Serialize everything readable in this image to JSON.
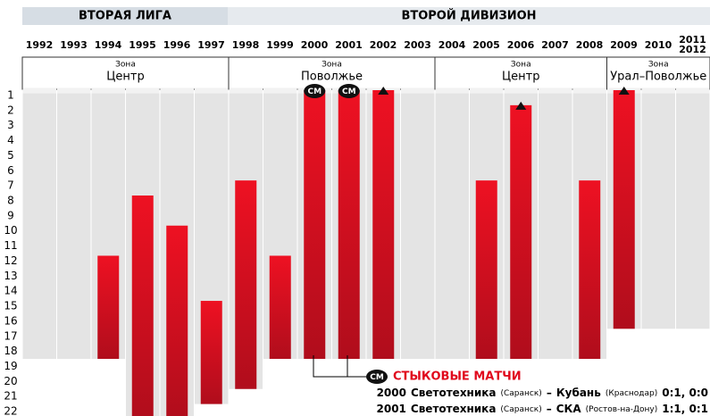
{
  "chart_data": {
    "type": "bar",
    "leagues": [
      "ВТОРАЯ ЛИГА",
      "ВТОРОЙ ДИВИЗИОН"
    ],
    "zones": [
      {
        "label": "Зона",
        "name": "Центр"
      },
      {
        "label": "Зона",
        "name": "Поволжье"
      },
      {
        "label": "Зона",
        "name": "Центр"
      },
      {
        "label": "Зона",
        "name": "Урал–Поволжье"
      }
    ],
    "categories": [
      "1992",
      "1993",
      "1994",
      "1995",
      "1996",
      "1997",
      "1998",
      "1999",
      "2000",
      "2001",
      "2002",
      "2003",
      "2004",
      "2005",
      "2006",
      "2007",
      "2008",
      "2009",
      "2010",
      "2011\n2012"
    ],
    "values": [
      null,
      null,
      12,
      8,
      10,
      15,
      7,
      12,
      1,
      1,
      1,
      null,
      null,
      7,
      2,
      null,
      7,
      1,
      null,
      null
    ],
    "teams": [
      18,
      18,
      18,
      22,
      22,
      21,
      20,
      18,
      18,
      18,
      18,
      18,
      18,
      18,
      18,
      18,
      18,
      16,
      16,
      16
    ],
    "playoff": [
      false,
      false,
      false,
      false,
      false,
      false,
      false,
      false,
      true,
      true,
      false,
      false,
      false,
      false,
      false,
      false,
      false,
      false,
      false,
      false
    ],
    "promoted": [
      false,
      false,
      false,
      false,
      false,
      false,
      false,
      false,
      false,
      false,
      true,
      false,
      false,
      false,
      true,
      false,
      false,
      true,
      false,
      false
    ],
    "color": "#e0081c",
    "background": "#e4e4e4",
    "ylim": [
      1,
      22
    ],
    "yticks": [
      1,
      2,
      3,
      4,
      5,
      6,
      7,
      8,
      9,
      10,
      11,
      12,
      13,
      14,
      15,
      16,
      17,
      18,
      19,
      20,
      21,
      22
    ],
    "playoff_label": "СМ",
    "playoff_title": "СТЫКОВЫЕ МАТЧИ",
    "dash": "–",
    "matches": [
      {
        "year": "2000",
        "home": "Светотехника",
        "home_city": "(Саранск)",
        "away": "Кубань",
        "away_city": "(Краснодар)",
        "score": "0:1, 0:0"
      },
      {
        "year": "2001",
        "home": "Светотехника",
        "home_city": "(Саранск)",
        "away": "СКА",
        "away_city": "(Ростов-на-Дону)",
        "score": "1:1, 0:1"
      }
    ]
  }
}
